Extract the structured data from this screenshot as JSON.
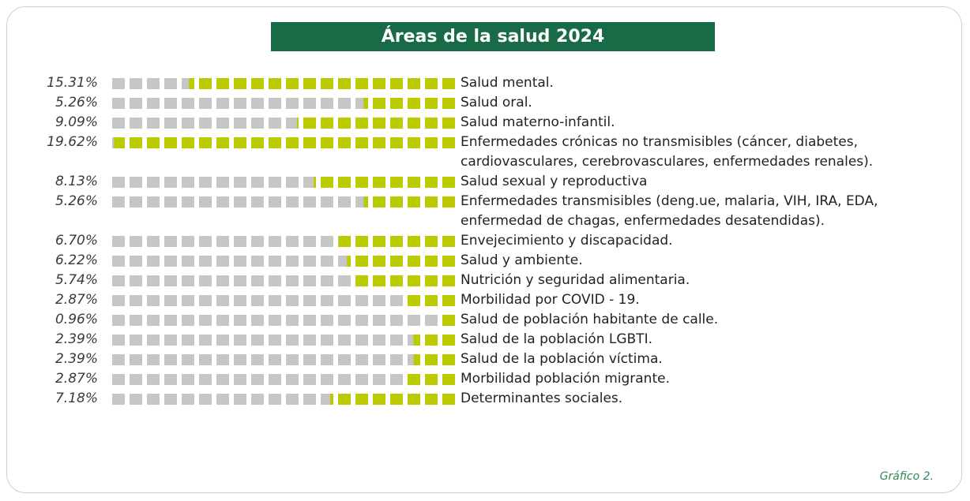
{
  "chart_data": {
    "type": "bar",
    "title": "Áreas de la salud 2024",
    "note": "Gráfico 2.",
    "categories": [
      "Salud mental.",
      "Salud oral.",
      "Salud materno-infantil.",
      "Enfermedades crónicas no transmisibles (cáncer, diabetes, cardiovasculares, cerebrovasculares, enfermedades renales).",
      "Salud sexual y reproductiva",
      "Enfermedades transmisibles (deng.ue, malaria, VIH, IRA, EDA, enfermedad de chagas, enfermedades desatendidas).",
      "Envejecimiento y discapacidad.",
      "Salud y ambiente.",
      "Nutrición y seguridad alimentaria.",
      "Morbilidad por COVID - 19.",
      "Salud de población habitante de calle.",
      "Salud de la población LGBTI.",
      "Salud de la población víctima.",
      "Morbilidad población migrante.",
      "Determinantes sociales."
    ],
    "values": [
      15.31,
      5.26,
      9.09,
      19.62,
      8.13,
      5.26,
      6.7,
      6.22,
      5.74,
      2.87,
      0.96,
      2.39,
      2.39,
      2.87,
      7.18
    ],
    "value_labels": [
      "15.31%",
      "5.26%",
      "9.09%",
      "19.62%",
      "8.13%",
      "5.26%",
      "6.70%",
      "6.22%",
      "5.74%",
      "2.87%",
      "0.96%",
      "2.39%",
      "2.39%",
      "2.87%",
      "7.18%"
    ],
    "xlim": [
      0,
      20
    ],
    "color": "#bccb00",
    "track_color": "#c6c6c6"
  }
}
